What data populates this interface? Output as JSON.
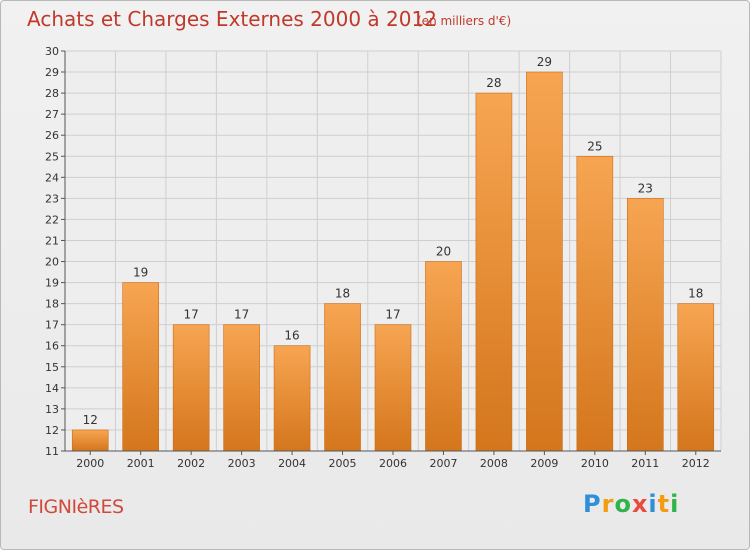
{
  "title": "Achats et Charges Externes 2000 à 2012",
  "subtitle": "(en milliers d'€)",
  "commune": "FIGNIèRES",
  "logo": {
    "letters": [
      "P",
      "r",
      "o",
      "x",
      "i",
      "t",
      "i"
    ],
    "colors": [
      "#2f8fd8",
      "#f39c12",
      "#2fb34a",
      "#e74c3c",
      "#2f8fd8",
      "#f39c12",
      "#2fb34a"
    ]
  },
  "chart_data": {
    "type": "bar",
    "categories": [
      "2000",
      "2001",
      "2002",
      "2003",
      "2004",
      "2005",
      "2006",
      "2007",
      "2008",
      "2009",
      "2010",
      "2011",
      "2012"
    ],
    "values": [
      12,
      19,
      17,
      17,
      16,
      18,
      17,
      20,
      28,
      29,
      25,
      23,
      18
    ],
    "title": "Achats et Charges Externes 2000 à 2012",
    "xlabel": "",
    "ylabel": "",
    "ylim": [
      11,
      30
    ],
    "yticks": [
      11,
      12,
      13,
      14,
      15,
      16,
      17,
      18,
      19,
      20,
      21,
      22,
      23,
      24,
      25,
      26,
      27,
      28,
      29,
      30
    ],
    "grid": true,
    "colors": {
      "bar_top": "#f7a552",
      "bar_bottom": "#d4761c",
      "grid": "#cfcfcf",
      "axis": "#555555",
      "text": "#333333"
    }
  }
}
